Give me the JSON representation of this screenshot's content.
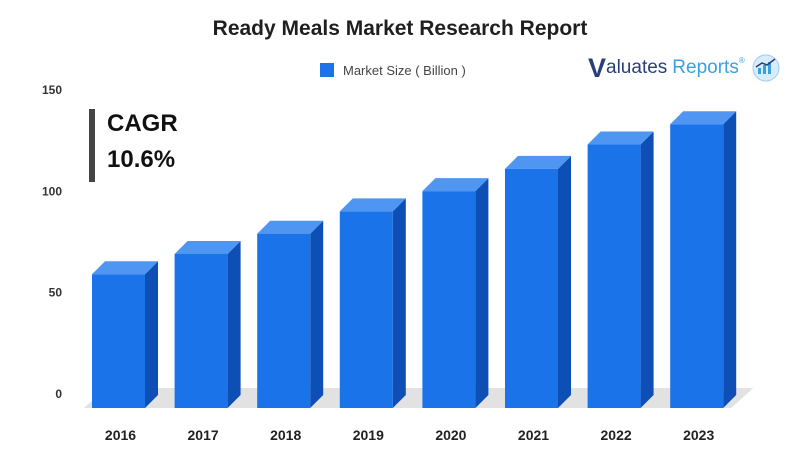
{
  "chart_data": {
    "type": "bar",
    "title": "Ready Meals Market Research Report",
    "categories": [
      "2016",
      "2017",
      "2018",
      "2019",
      "2020",
      "2021",
      "2022",
      "2023"
    ],
    "series": [
      {
        "name": "Market Size ( Billion )",
        "values": [
          66,
          76,
          86,
          97,
          107,
          118,
          130,
          140
        ]
      }
    ],
    "ylim": [
      0,
      150
    ],
    "yticks": [
      0,
      50,
      100,
      150
    ],
    "grid": false,
    "legend": "top",
    "colors": {
      "bar_front": "#1a73e8",
      "bar_side": "#0d4fb4",
      "bar_top": "#4e96f2",
      "floor": "#e2e2e2"
    }
  },
  "annotation": {
    "label": "CAGR",
    "value": "10.6%"
  },
  "brand": {
    "v": "V",
    "aluates": "aluates",
    "reports": "Reports",
    "reg": "®"
  }
}
